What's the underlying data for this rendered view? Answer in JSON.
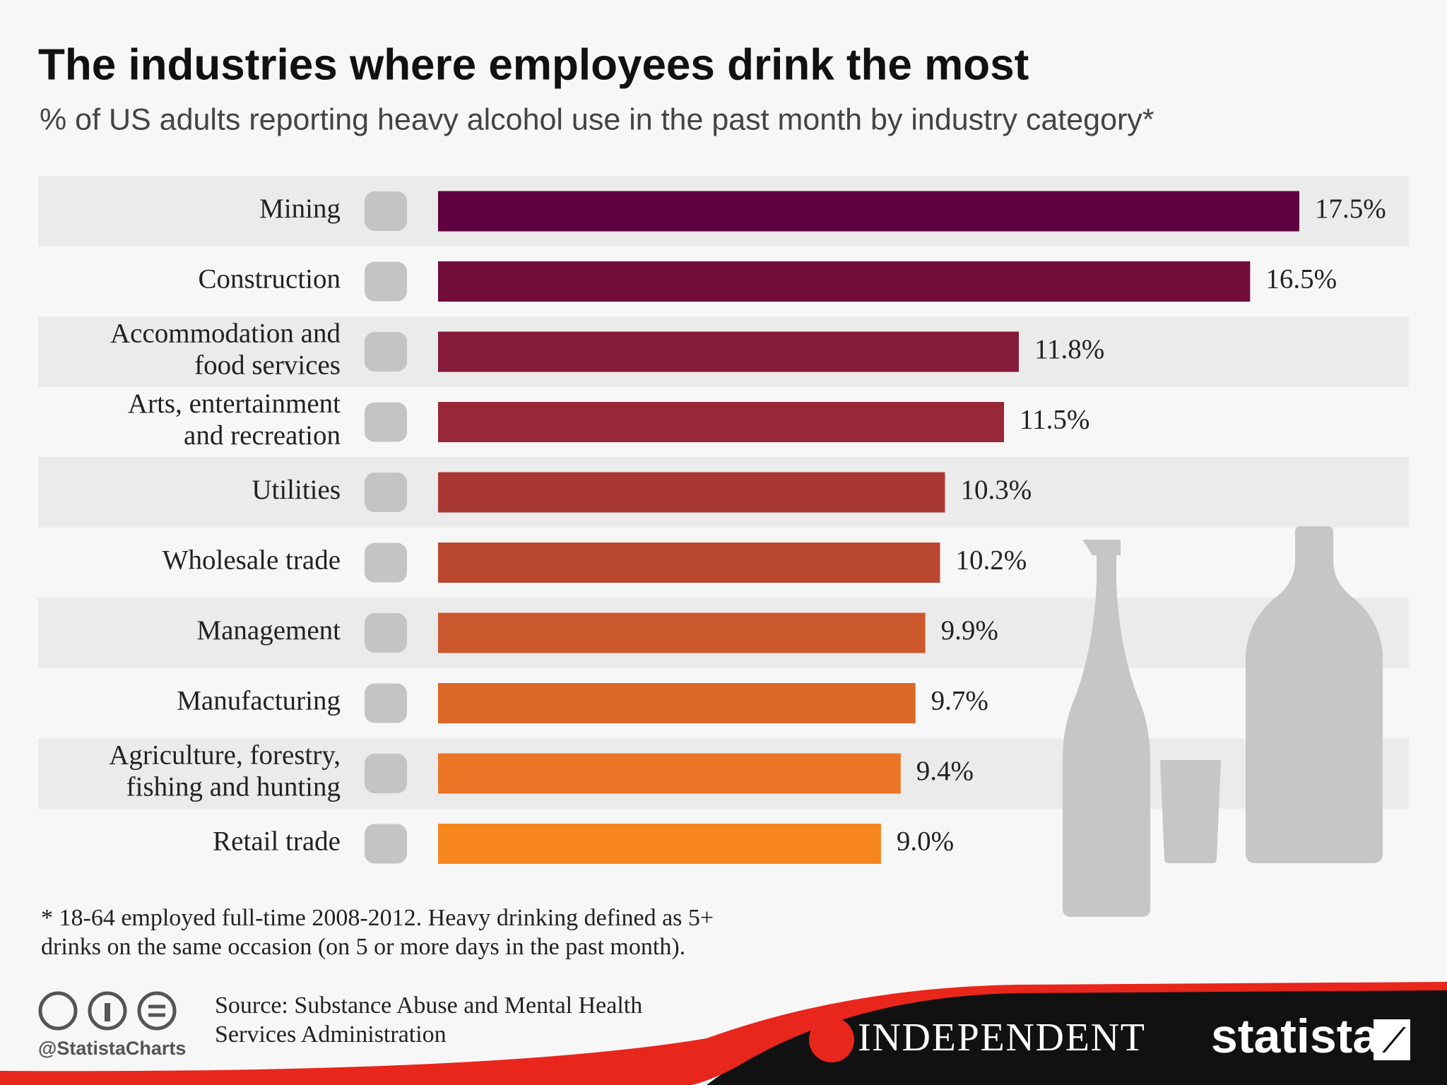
{
  "chart_data": {
    "type": "bar",
    "orientation": "horizontal",
    "title": "The industries where employees drink the most",
    "subtitle": "% of US adults reporting heavy alcohol use in the past month by industry category*",
    "categories": [
      [
        "Mining"
      ],
      [
        "Construction"
      ],
      [
        "Accommodation and",
        "food services"
      ],
      [
        "Arts, entertainment",
        "and recreation"
      ],
      [
        "Utilities"
      ],
      [
        "Wholesale trade"
      ],
      [
        "Management"
      ],
      [
        "Manufacturing"
      ],
      [
        "Agriculture, forestry,",
        "fishing and hunting"
      ],
      [
        "Retail trade"
      ]
    ],
    "values": [
      17.5,
      16.5,
      11.8,
      11.5,
      10.3,
      10.2,
      9.9,
      9.7,
      9.4,
      9.0
    ],
    "value_labels": [
      "17.5%",
      "16.5%",
      "11.8%",
      "11.5%",
      "10.3%",
      "10.2%",
      "9.9%",
      "9.7%",
      "9.4%",
      "9.0%"
    ],
    "colors": [
      "#5e0040",
      "#720d3c",
      "#861a3a",
      "#982838",
      "#a93834",
      "#ba4830",
      "#cb582c",
      "#dc6828",
      "#ea7524",
      "#f7861f"
    ]
  },
  "footnote": [
    "* 18-64 employed full-time 2008-2012. Heavy drinking defined as 5+",
    "drinks on the same occasion (on 5 or more days in the past month)."
  ],
  "source": [
    "Source: Substance Abuse and Mental Health",
    "Services Administration"
  ],
  "credit": "@StatistaCharts",
  "logos": {
    "partner": "INDEPENDENT",
    "publisher": "statista"
  }
}
